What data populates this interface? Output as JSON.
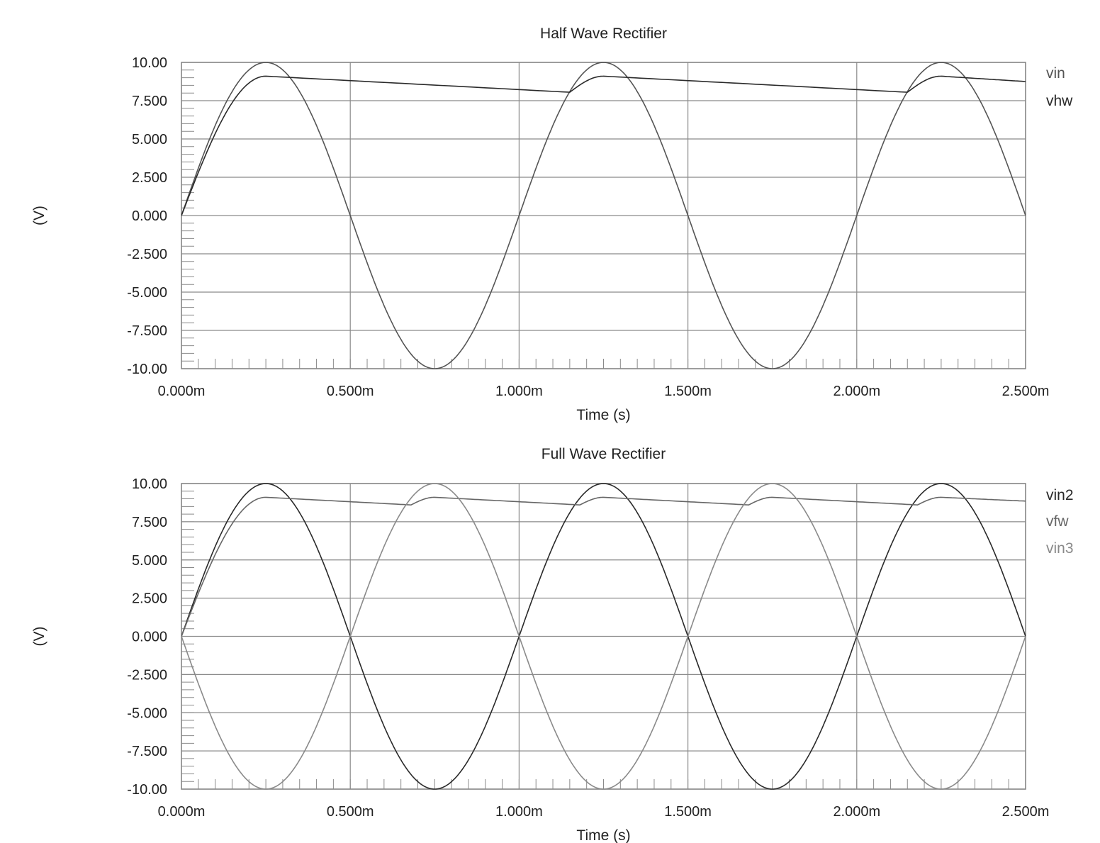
{
  "chart_data": [
    {
      "type": "line",
      "title": "Half Wave Rectifier",
      "xlabel": "Time (s)",
      "ylabel": "(V)",
      "xlim": [
        0.0,
        0.0025
      ],
      "ylim": [
        -10.0,
        10.0
      ],
      "x_tick_labels": [
        "0.000m",
        "0.500m",
        "1.000m",
        "1.500m",
        "2.000m",
        "2.500m"
      ],
      "x_tick_values": [
        0.0,
        0.0005,
        0.001,
        0.0015,
        0.002,
        0.0025
      ],
      "y_tick_labels": [
        "10.00",
        "7.500",
        "5.000",
        "2.500",
        "0.000",
        "-2.500",
        "-5.000",
        "-7.500",
        "-10.00"
      ],
      "y_tick_values": [
        10,
        7.5,
        5,
        2.5,
        0,
        -2.5,
        -5,
        -7.5,
        -10
      ],
      "grid": true,
      "legend_position": "right",
      "series": [
        {
          "name": "vin",
          "color": "#555555",
          "kind": "sine",
          "amplitude": 10,
          "frequency_hz": 1000,
          "x": [
            0.0,
            0.00025,
            0.0005,
            0.00075,
            0.001,
            0.00125,
            0.0015,
            0.00175,
            0.002,
            0.00225,
            0.0025
          ],
          "values": [
            0,
            10,
            0,
            -10,
            0,
            10,
            0,
            -10,
            0,
            10,
            0
          ]
        },
        {
          "name": "vhw",
          "color": "#2a2a2a",
          "kind": "peak-detector",
          "x": [
            0.0,
            0.00025,
            0.00115,
            0.00125,
            0.00215,
            0.00225,
            0.0025
          ],
          "values": [
            0.0,
            9.1,
            8.05,
            9.1,
            8.05,
            9.1,
            8.75
          ]
        }
      ]
    },
    {
      "type": "line",
      "title": "Full Wave Rectifier",
      "xlabel": "Time (s)",
      "ylabel": "(V)",
      "xlim": [
        0.0,
        0.0025
      ],
      "ylim": [
        -10.0,
        10.0
      ],
      "x_tick_labels": [
        "0.000m",
        "0.500m",
        "1.000m",
        "1.500m",
        "2.000m",
        "2.500m"
      ],
      "x_tick_values": [
        0.0,
        0.0005,
        0.001,
        0.0015,
        0.002,
        0.0025
      ],
      "y_tick_labels": [
        "10.00",
        "7.500",
        "5.000",
        "2.500",
        "0.000",
        "-2.500",
        "-5.000",
        "-7.500",
        "-10.00"
      ],
      "y_tick_values": [
        10,
        7.5,
        5,
        2.5,
        0,
        -2.5,
        -5,
        -7.5,
        -10
      ],
      "grid": true,
      "legend_position": "right",
      "series": [
        {
          "name": "vin2",
          "color": "#2a2a2a",
          "kind": "sine",
          "amplitude": 10,
          "frequency_hz": 1000,
          "x": [
            0.0,
            0.00025,
            0.0005,
            0.00075,
            0.001,
            0.00125,
            0.0015,
            0.00175,
            0.002,
            0.00225,
            0.0025
          ],
          "values": [
            0,
            10,
            0,
            -10,
            0,
            10,
            0,
            -10,
            0,
            10,
            0
          ]
        },
        {
          "name": "vfw",
          "color": "#666666",
          "kind": "peak-detector",
          "x": [
            0.0,
            0.00025,
            0.00068,
            0.00075,
            0.00118,
            0.00125,
            0.00168,
            0.00175,
            0.00218,
            0.00225,
            0.0025
          ],
          "values": [
            0.0,
            9.1,
            8.6,
            9.1,
            8.6,
            9.1,
            8.6,
            9.1,
            8.6,
            9.1,
            8.85
          ]
        },
        {
          "name": "vin3",
          "color": "#8a8a8a",
          "kind": "sine",
          "amplitude": -10,
          "frequency_hz": 1000,
          "x": [
            0.0,
            0.00025,
            0.0005,
            0.00075,
            0.001,
            0.00125,
            0.0015,
            0.00175,
            0.002,
            0.00225,
            0.0025
          ],
          "values": [
            0,
            -10,
            0,
            10,
            0,
            -10,
            0,
            10,
            0,
            -10,
            0
          ]
        }
      ]
    }
  ]
}
